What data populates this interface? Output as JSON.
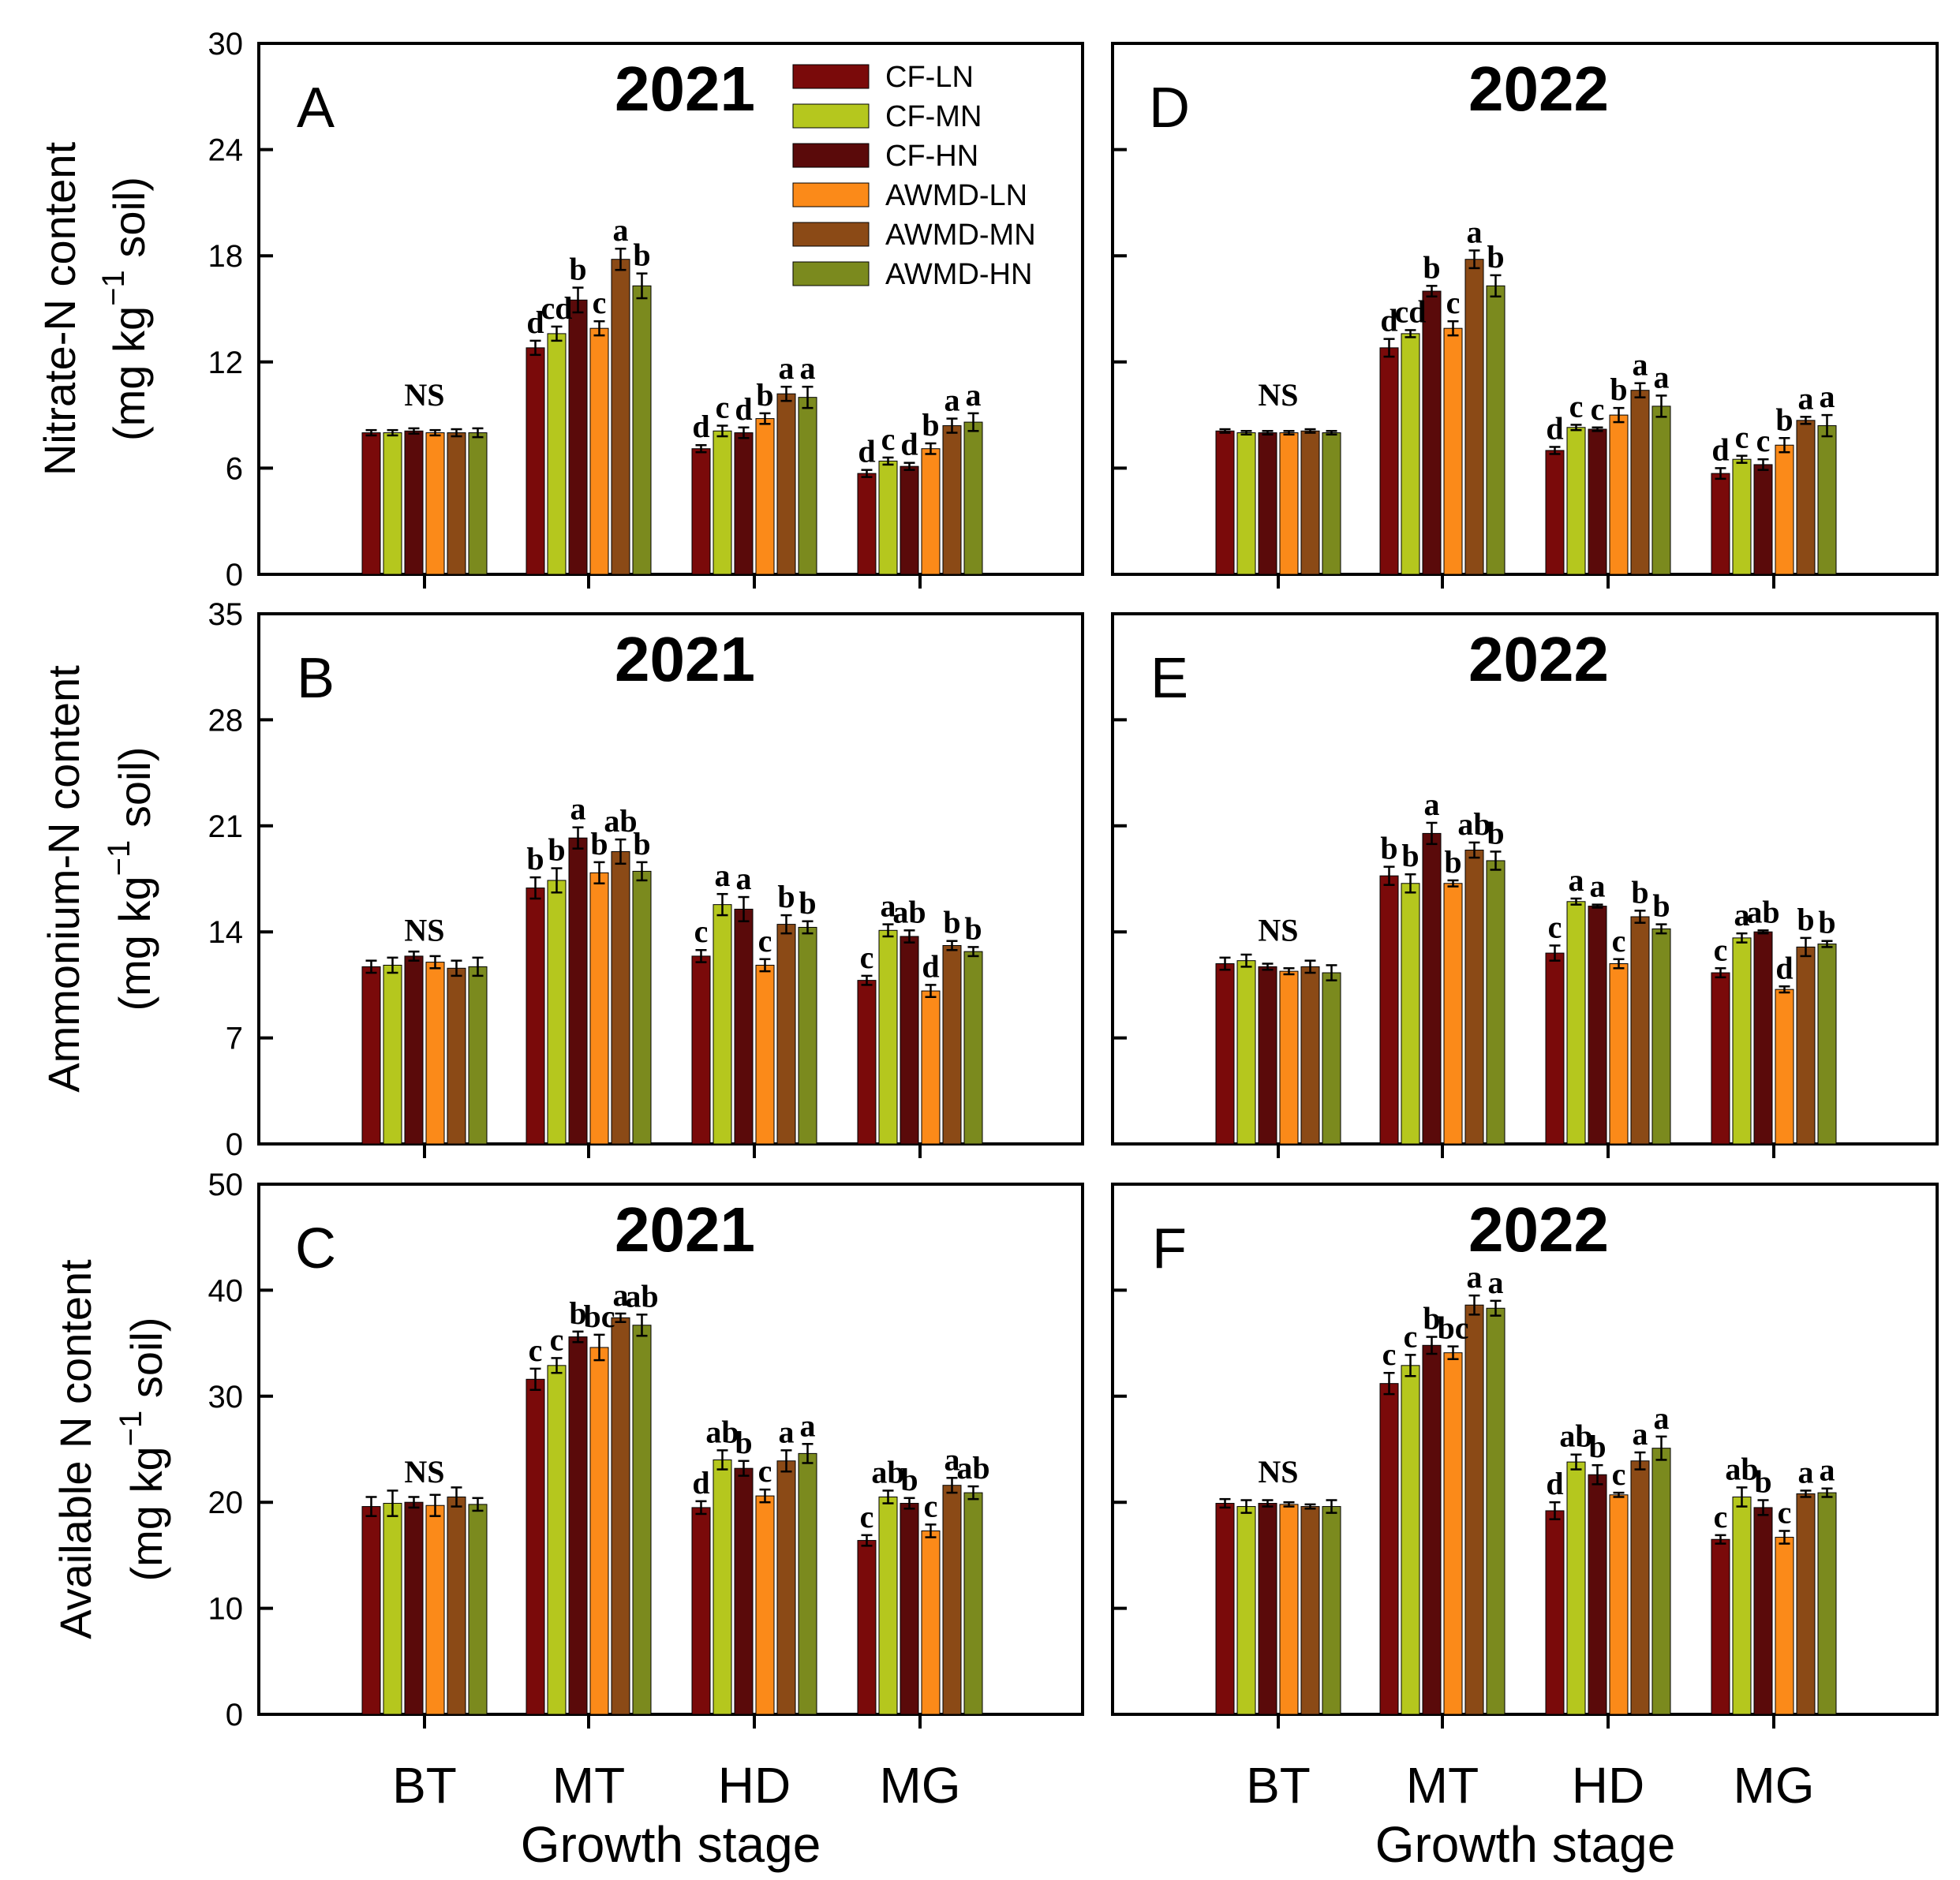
{
  "colors": {
    "CF-LN": "#7a0a0a",
    "CF-MN": "#b5c71e",
    "CF-HN": "#5a0a0a",
    "AWMD-LN": "#fb8a19",
    "AWMD-MN": "#8b4a16",
    "AWMD-HN": "#7b8a1e"
  },
  "legend": [
    "CF-LN",
    "CF-MN",
    "CF-HN",
    "AWMD-LN",
    "AWMD-MN",
    "AWMD-HN"
  ],
  "x_axis_label": "Growth stage",
  "rows": [
    {
      "ylabel_line1": "Nitrate-N content",
      "ylabel_line2_pre": "(mg kg",
      "ylabel_sup": "−1",
      "ylabel_line2_post": " soil)",
      "ylim": [
        0,
        30
      ],
      "ticks": [
        0,
        6,
        12,
        18,
        24,
        30
      ]
    },
    {
      "ylabel_line1": "Ammonium-N content",
      "ylabel_line2_pre": "(mg kg",
      "ylabel_sup": "−1",
      "ylabel_line2_post": " soil)",
      "ylim": [
        0,
        35
      ],
      "ticks": [
        0,
        7,
        14,
        21,
        28,
        35
      ]
    },
    {
      "ylabel_line1": "Available N content",
      "ylabel_line2_pre": "(mg kg",
      "ylabel_sup": "−1",
      "ylabel_line2_post": " soil)",
      "ylim": [
        0,
        50
      ],
      "ticks": [
        0,
        10,
        20,
        30,
        40,
        50
      ]
    }
  ],
  "chart_data": [
    {
      "type": "bar",
      "panel": "A",
      "year": "2021",
      "row": 0,
      "col": 0,
      "categories": [
        "BT",
        "MT",
        "HD",
        "MG"
      ],
      "ylim": [
        0,
        30
      ],
      "series": [
        {
          "name": "CF-LN",
          "values": [
            8.0,
            12.8,
            7.1,
            5.7
          ],
          "errors": [
            0.15,
            0.4,
            0.2,
            0.2
          ]
        },
        {
          "name": "CF-MN",
          "values": [
            8.0,
            13.6,
            8.1,
            6.4
          ],
          "errors": [
            0.15,
            0.4,
            0.3,
            0.2
          ]
        },
        {
          "name": "CF-HN",
          "values": [
            8.1,
            15.5,
            8.0,
            6.1
          ],
          "errors": [
            0.15,
            0.7,
            0.3,
            0.2
          ]
        },
        {
          "name": "AWMD-LN",
          "values": [
            8.0,
            13.9,
            8.8,
            7.1
          ],
          "errors": [
            0.15,
            0.4,
            0.3,
            0.3
          ]
        },
        {
          "name": "AWMD-MN",
          "values": [
            8.0,
            17.8,
            10.2,
            8.4
          ],
          "errors": [
            0.2,
            0.6,
            0.4,
            0.4
          ]
        },
        {
          "name": "AWMD-HN",
          "values": [
            8.0,
            16.3,
            10.0,
            8.6
          ],
          "errors": [
            0.25,
            0.7,
            0.6,
            0.5
          ]
        }
      ],
      "annotations": [
        {
          "cat": 0,
          "text": "NS",
          "y": 10.2
        },
        {
          "cat": 1,
          "labels": [
            "d",
            "cd",
            "b",
            "c",
            "a",
            "b"
          ]
        },
        {
          "cat": 2,
          "labels": [
            "d",
            "c",
            "d",
            "b",
            "a",
            "a"
          ]
        },
        {
          "cat": 3,
          "labels": [
            "d",
            "c",
            "d",
            "b",
            "a",
            "a"
          ]
        }
      ]
    },
    {
      "type": "bar",
      "panel": "D",
      "year": "2022",
      "row": 0,
      "col": 1,
      "categories": [
        "BT",
        "MT",
        "HD",
        "MG"
      ],
      "ylim": [
        0,
        30
      ],
      "series": [
        {
          "name": "CF-LN",
          "values": [
            8.1,
            12.8,
            7.0,
            5.7
          ],
          "errors": [
            0.1,
            0.5,
            0.2,
            0.3
          ]
        },
        {
          "name": "CF-MN",
          "values": [
            8.0,
            13.6,
            8.3,
            6.5
          ],
          "errors": [
            0.1,
            0.2,
            0.15,
            0.2
          ]
        },
        {
          "name": "CF-HN",
          "values": [
            8.0,
            16.0,
            8.2,
            6.2
          ],
          "errors": [
            0.1,
            0.3,
            0.1,
            0.3
          ]
        },
        {
          "name": "AWMD-LN",
          "values": [
            8.0,
            13.9,
            9.0,
            7.3
          ],
          "errors": [
            0.1,
            0.4,
            0.4,
            0.4
          ]
        },
        {
          "name": "AWMD-MN",
          "values": [
            8.1,
            17.8,
            10.4,
            8.7
          ],
          "errors": [
            0.1,
            0.5,
            0.4,
            0.2
          ]
        },
        {
          "name": "AWMD-HN",
          "values": [
            8.0,
            16.3,
            9.5,
            8.4
          ],
          "errors": [
            0.1,
            0.6,
            0.6,
            0.6
          ]
        }
      ],
      "annotations": [
        {
          "cat": 0,
          "text": "NS",
          "y": 10.2
        },
        {
          "cat": 1,
          "labels": [
            "d",
            "cd",
            "b",
            "c",
            "a",
            "b"
          ]
        },
        {
          "cat": 2,
          "labels": [
            "d",
            "c",
            "c",
            "b",
            "a",
            "a"
          ]
        },
        {
          "cat": 3,
          "labels": [
            "d",
            "c",
            "c",
            "b",
            "a",
            "a"
          ]
        }
      ]
    },
    {
      "type": "bar",
      "panel": "B",
      "year": "2021",
      "row": 1,
      "col": 0,
      "categories": [
        "BT",
        "MT",
        "HD",
        "MG"
      ],
      "ylim": [
        0,
        35
      ],
      "series": [
        {
          "name": "CF-LN",
          "values": [
            11.7,
            16.9,
            12.4,
            10.8
          ],
          "errors": [
            0.4,
            0.7,
            0.4,
            0.3
          ]
        },
        {
          "name": "CF-MN",
          "values": [
            11.8,
            17.4,
            15.8,
            14.1
          ],
          "errors": [
            0.5,
            0.8,
            0.7,
            0.4
          ]
        },
        {
          "name": "CF-HN",
          "values": [
            12.4,
            20.2,
            15.5,
            13.7
          ],
          "errors": [
            0.3,
            0.7,
            0.8,
            0.4
          ]
        },
        {
          "name": "AWMD-LN",
          "values": [
            12.0,
            17.9,
            11.8,
            10.1
          ],
          "errors": [
            0.4,
            0.7,
            0.4,
            0.4
          ]
        },
        {
          "name": "AWMD-MN",
          "values": [
            11.6,
            19.3,
            14.5,
            13.1
          ],
          "errors": [
            0.5,
            0.8,
            0.6,
            0.3
          ]
        },
        {
          "name": "AWMD-HN",
          "values": [
            11.7,
            18.0,
            14.3,
            12.7
          ],
          "errors": [
            0.6,
            0.6,
            0.4,
            0.3
          ]
        }
      ],
      "annotations": [
        {
          "cat": 0,
          "text": "NS",
          "y": 14.2
        },
        {
          "cat": 1,
          "labels": [
            "b",
            "b",
            "a",
            "b",
            "ab",
            "b"
          ]
        },
        {
          "cat": 2,
          "labels": [
            "c",
            "a",
            "a",
            "c",
            "b",
            "b"
          ]
        },
        {
          "cat": 3,
          "labels": [
            "c",
            "a",
            "ab",
            "d",
            "b",
            "b"
          ]
        }
      ]
    },
    {
      "type": "bar",
      "panel": "E",
      "year": "2022",
      "row": 1,
      "col": 1,
      "categories": [
        "BT",
        "MT",
        "HD",
        "MG"
      ],
      "ylim": [
        0,
        35
      ],
      "series": [
        {
          "name": "CF-LN",
          "values": [
            11.9,
            17.7,
            12.6,
            11.3
          ],
          "errors": [
            0.4,
            0.6,
            0.5,
            0.3
          ]
        },
        {
          "name": "CF-MN",
          "values": [
            12.1,
            17.2,
            16.0,
            13.6
          ],
          "errors": [
            0.4,
            0.6,
            0.2,
            0.3
          ]
        },
        {
          "name": "CF-HN",
          "values": [
            11.7,
            20.5,
            15.7,
            14.0
          ],
          "errors": [
            0.2,
            0.7,
            0.1,
            0.1
          ]
        },
        {
          "name": "AWMD-LN",
          "values": [
            11.4,
            17.2,
            11.9,
            10.2
          ],
          "errors": [
            0.2,
            0.2,
            0.3,
            0.2
          ]
        },
        {
          "name": "AWMD-MN",
          "values": [
            11.7,
            19.4,
            15.0,
            13.0
          ],
          "errors": [
            0.4,
            0.5,
            0.4,
            0.6
          ]
        },
        {
          "name": "AWMD-HN",
          "values": [
            11.3,
            18.7,
            14.2,
            13.2
          ],
          "errors": [
            0.5,
            0.6,
            0.3,
            0.2
          ]
        }
      ],
      "annotations": [
        {
          "cat": 0,
          "text": "NS",
          "y": 14.2
        },
        {
          "cat": 1,
          "labels": [
            "b",
            "b",
            "a",
            "b",
            "ab",
            "b"
          ]
        },
        {
          "cat": 2,
          "labels": [
            "c",
            "a",
            "a",
            "c",
            "b",
            "b"
          ]
        },
        {
          "cat": 3,
          "labels": [
            "c",
            "a",
            "ab",
            "d",
            "b",
            "b"
          ]
        }
      ]
    },
    {
      "type": "bar",
      "panel": "C",
      "year": "2021",
      "row": 2,
      "col": 0,
      "categories": [
        "BT",
        "MT",
        "HD",
        "MG"
      ],
      "ylim": [
        0,
        50
      ],
      "series": [
        {
          "name": "CF-LN",
          "values": [
            19.6,
            31.6,
            19.5,
            16.4
          ],
          "errors": [
            0.9,
            1.0,
            0.6,
            0.5
          ]
        },
        {
          "name": "CF-MN",
          "values": [
            19.9,
            32.9,
            24.0,
            20.5
          ],
          "errors": [
            1.2,
            0.7,
            0.9,
            0.6
          ]
        },
        {
          "name": "CF-HN",
          "values": [
            20.0,
            35.6,
            23.2,
            19.9
          ],
          "errors": [
            0.5,
            0.5,
            0.7,
            0.5
          ]
        },
        {
          "name": "AWMD-LN",
          "values": [
            19.7,
            34.6,
            20.6,
            17.3
          ],
          "errors": [
            1.0,
            1.2,
            0.6,
            0.6
          ]
        },
        {
          "name": "AWMD-MN",
          "values": [
            20.5,
            37.4,
            23.9,
            21.6
          ],
          "errors": [
            0.9,
            0.4,
            1.0,
            0.7
          ]
        },
        {
          "name": "AWMD-HN",
          "values": [
            19.8,
            36.7,
            24.6,
            20.9
          ],
          "errors": [
            0.6,
            1.0,
            0.9,
            0.6
          ]
        }
      ],
      "annotations": [
        {
          "cat": 0,
          "text": "NS",
          "y": 23.0
        },
        {
          "cat": 1,
          "labels": [
            "c",
            "c",
            "b",
            "bc",
            "a",
            "ab"
          ]
        },
        {
          "cat": 2,
          "labels": [
            "d",
            "ab",
            "b",
            "c",
            "a",
            "a"
          ]
        },
        {
          "cat": 3,
          "labels": [
            "c",
            "ab",
            "b",
            "c",
            "a",
            "ab"
          ]
        }
      ]
    },
    {
      "type": "bar",
      "panel": "F",
      "year": "2022",
      "row": 2,
      "col": 1,
      "categories": [
        "BT",
        "MT",
        "HD",
        "MG"
      ],
      "ylim": [
        0,
        50
      ],
      "series": [
        {
          "name": "CF-LN",
          "values": [
            19.9,
            31.2,
            19.2,
            16.5
          ],
          "errors": [
            0.4,
            1.0,
            0.8,
            0.4
          ]
        },
        {
          "name": "CF-MN",
          "values": [
            19.6,
            32.9,
            23.8,
            20.5
          ],
          "errors": [
            0.6,
            1.0,
            0.7,
            0.9
          ]
        },
        {
          "name": "CF-HN",
          "values": [
            19.9,
            34.8,
            22.6,
            19.5
          ],
          "errors": [
            0.3,
            0.8,
            0.9,
            0.7
          ]
        },
        {
          "name": "AWMD-LN",
          "values": [
            19.8,
            34.1,
            20.7,
            16.7
          ],
          "errors": [
            0.2,
            0.6,
            0.2,
            0.6
          ]
        },
        {
          "name": "AWMD-MN",
          "values": [
            19.6,
            38.6,
            23.9,
            20.8
          ],
          "errors": [
            0.2,
            0.9,
            0.8,
            0.3
          ]
        },
        {
          "name": "AWMD-HN",
          "values": [
            19.6,
            38.3,
            25.1,
            20.9
          ],
          "errors": [
            0.6,
            0.7,
            1.1,
            0.4
          ]
        }
      ],
      "annotations": [
        {
          "cat": 0,
          "text": "NS",
          "y": 23.0
        },
        {
          "cat": 1,
          "labels": [
            "c",
            "c",
            "b",
            "bc",
            "a",
            "a"
          ]
        },
        {
          "cat": 2,
          "labels": [
            "d",
            "ab",
            "b",
            "c",
            "a",
            "a"
          ]
        },
        {
          "cat": 3,
          "labels": [
            "c",
            "ab",
            "b",
            "c",
            "a",
            "a"
          ]
        }
      ]
    }
  ]
}
